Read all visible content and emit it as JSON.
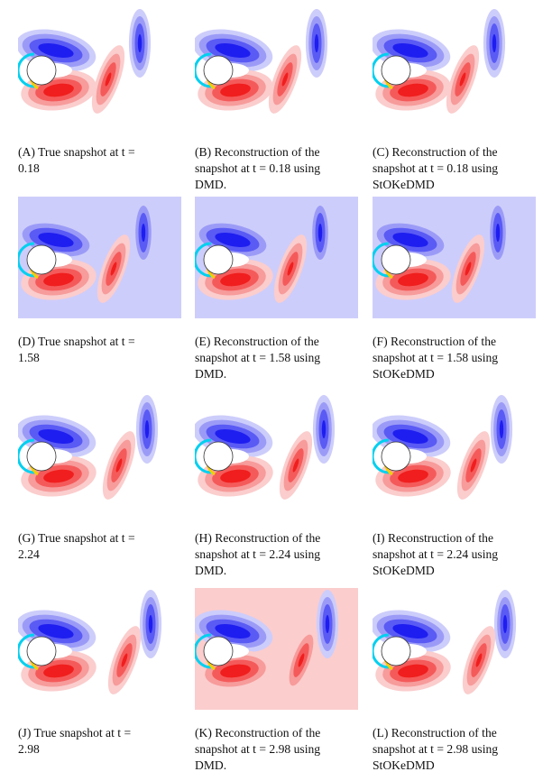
{
  "colors": {
    "blue_dark": "#1e1ef0",
    "blue_mid": "#5a5af5",
    "blue_light": "#9b9bf7",
    "blue_pale": "#cdcdfb",
    "red_dark": "#f01e1e",
    "red_mid": "#f55a5a",
    "red_light": "#f79b9b",
    "red_pale": "#fbcdcd",
    "cyan": "#00d0f0",
    "yellow": "#f0d000"
  },
  "panels": [
    {
      "label": "(A)",
      "text": "True snapshot at t = 0.18",
      "caption_lines": [
        "(A) True snapshot at t =",
        "0.18"
      ],
      "background": "white"
    },
    {
      "label": "(B)",
      "text": "Reconstruction of the snapshot at t = 0.18 using DMD.",
      "caption_lines": [
        "(B) Reconstruction of the",
        "snapshot at t = 0.18 using",
        "DMD."
      ],
      "background": "white"
    },
    {
      "label": "(C)",
      "text": "Reconstruction of the snapshot at t = 0.18 using StOKeDMD",
      "caption_lines": [
        "(C) Reconstruction of the",
        "snapshot at t = 0.18 using",
        "StOKeDMD"
      ],
      "background": "white"
    },
    {
      "label": "(D)",
      "text": "True snapshot at t = 1.58",
      "caption_lines": [
        "(D) True snapshot at t =",
        "1.58"
      ],
      "background": "blue"
    },
    {
      "label": "(E)",
      "text": "Reconstruction of the snapshot at t = 1.58 using DMD.",
      "caption_lines": [
        "(E) Reconstruction of the",
        "snapshot at t = 1.58 using",
        "DMD."
      ],
      "background": "blue"
    },
    {
      "label": "(F)",
      "text": "Reconstruction of the snapshot at t = 1.58 using StOKeDMD",
      "caption_lines": [
        "(F) Reconstruction of the",
        "snapshot at t = 1.58 using",
        "StOKeDMD"
      ],
      "background": "blue"
    },
    {
      "label": "(G)",
      "text": "True snapshot at t = 2.24",
      "caption_lines": [
        "(G) True snapshot at t =",
        "2.24"
      ],
      "background": "white"
    },
    {
      "label": "(H)",
      "text": "Reconstruction of the snapshot at t = 2.24 using DMD.",
      "caption_lines": [
        "(H) Reconstruction of the",
        "snapshot at t = 2.24 using",
        "DMD."
      ],
      "background": "white"
    },
    {
      "label": "(I)",
      "text": "Reconstruction of the snapshot at t = 2.24 using StOKeDMD",
      "caption_lines": [
        "(I) Reconstruction of the",
        "snapshot at t = 2.24 using",
        "StOKeDMD"
      ],
      "background": "white"
    },
    {
      "label": "(J)",
      "text": "True snapshot at t = 2.98",
      "caption_lines": [
        "(J) True snapshot at t =",
        "2.98"
      ],
      "background": "white"
    },
    {
      "label": "(K)",
      "text": "Reconstruction of the snapshot at t = 2.98 using DMD.",
      "caption_lines": [
        "(K) Reconstruction of the",
        "snapshot at t = 2.98 using",
        "DMD."
      ],
      "background": "red"
    },
    {
      "label": "(L)",
      "text": "Reconstruction of the snapshot at t = 2.98 using StOKeDMD",
      "caption_lines": [
        "(L) Reconstruction of the",
        "snapshot at t = 2.98 using",
        "StOKeDMD"
      ],
      "background": "white"
    }
  ]
}
